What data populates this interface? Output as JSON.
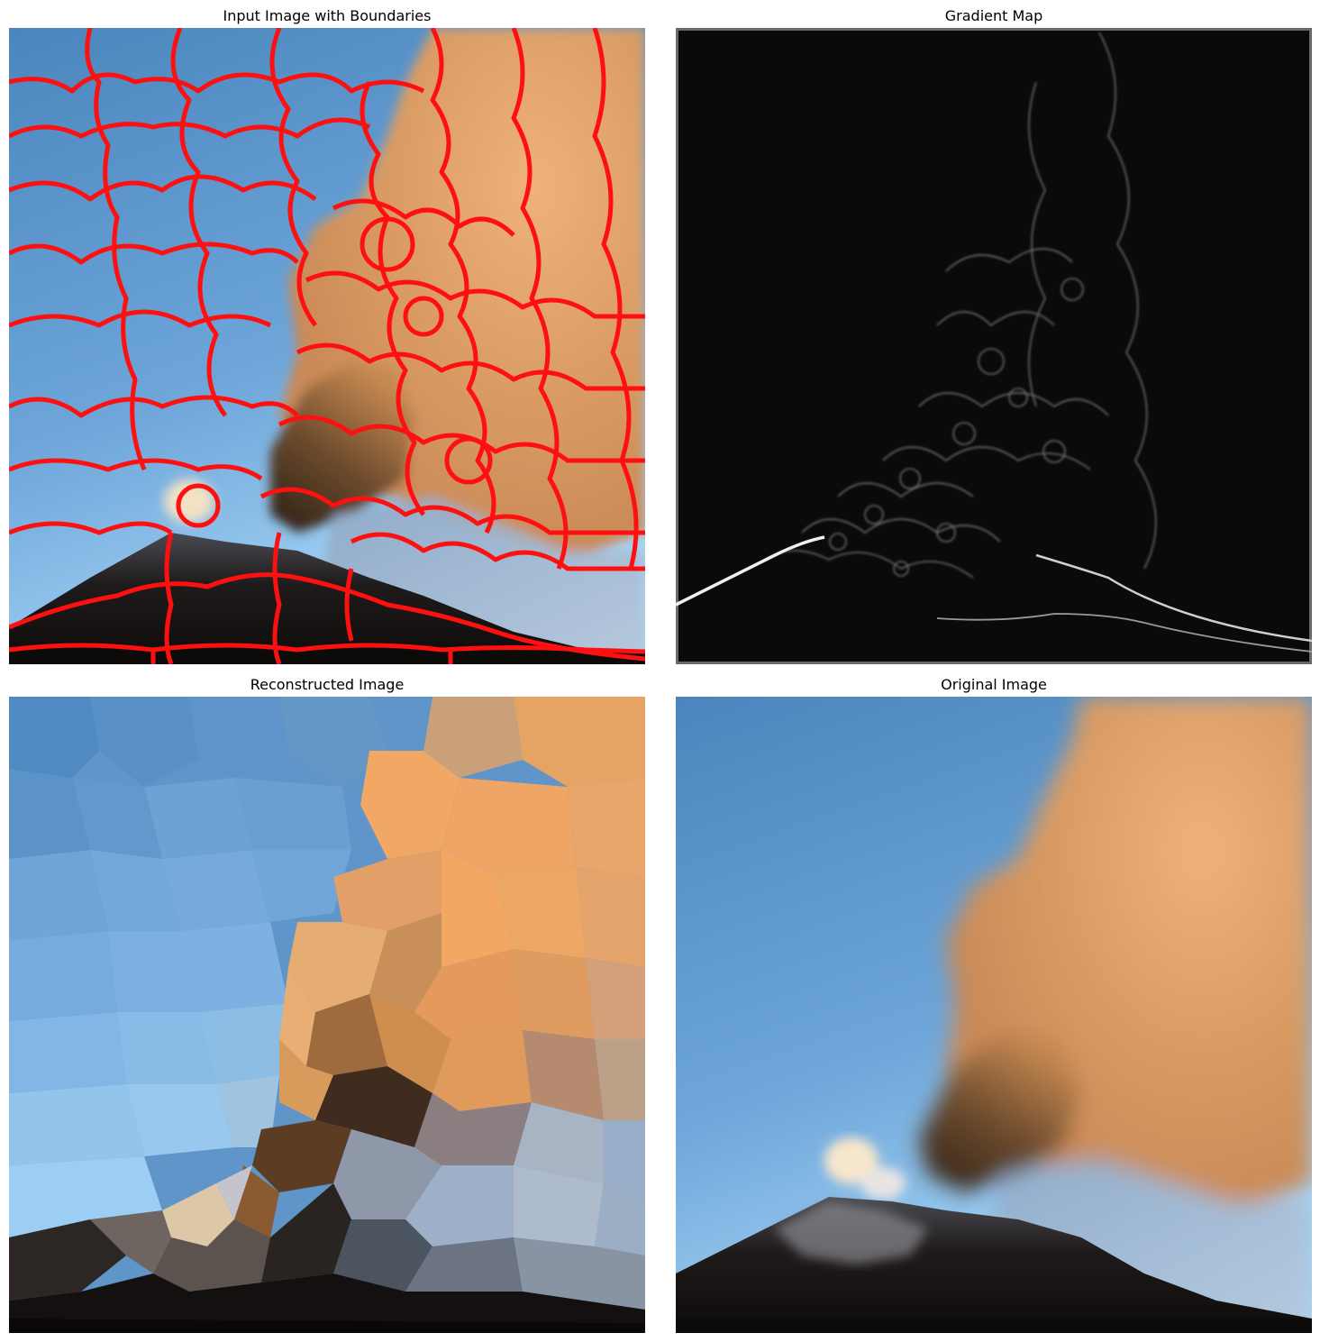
{
  "panels": {
    "input": {
      "title": "Input Image with Boundaries"
    },
    "gradient": {
      "title": "Gradient Map"
    },
    "reconstructed": {
      "title": "Reconstructed Image"
    },
    "original": {
      "title": "Original Image"
    }
  },
  "colors": {
    "sky_top": "#4a86bd",
    "sky_bottom": "#9fd0f3",
    "plume_light": "#e9a868",
    "plume_dark": "#3a2a1e",
    "ground": "#0d0b0a",
    "boundary": "#ff0000",
    "gradient_bg": "#0a0a0a",
    "gradient_edge": "#e6e6e6"
  }
}
